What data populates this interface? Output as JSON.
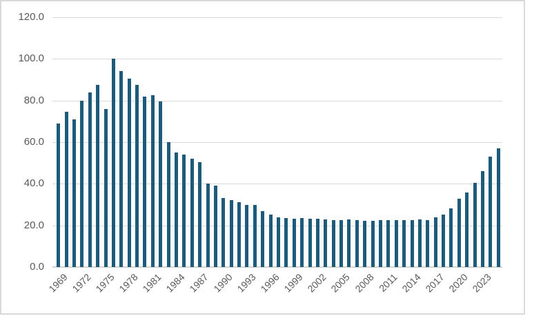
{
  "chart_data": {
    "type": "bar",
    "title": "",
    "xlabel": "",
    "ylabel": "",
    "legend": "none",
    "grid": true,
    "ylim": [
      0,
      120
    ],
    "x": [
      1969,
      1970,
      1971,
      1972,
      1973,
      1974,
      1975,
      1976,
      1977,
      1978,
      1979,
      1980,
      1981,
      1982,
      1983,
      1984,
      1985,
      1986,
      1987,
      1988,
      1989,
      1990,
      1991,
      1992,
      1993,
      1994,
      1995,
      1996,
      1997,
      1998,
      1999,
      2000,
      2001,
      2002,
      2003,
      2004,
      2005,
      2006,
      2007,
      2008,
      2009,
      2010,
      2011,
      2012,
      2013,
      2014,
      2015,
      2016,
      2017,
      2018,
      2019,
      2020,
      2021,
      2022,
      2023,
      2024,
      2025
    ],
    "values": [
      69.0,
      74.5,
      71.0,
      80.0,
      84.0,
      87.5,
      76.0,
      100.0,
      94.0,
      90.5,
      87.5,
      82.0,
      82.5,
      79.5,
      60.0,
      55.0,
      54.0,
      52.0,
      50.5,
      40.0,
      39.0,
      33.3,
      32.0,
      31.0,
      30.0,
      30.0,
      27.0,
      25.3,
      24.0,
      23.6,
      23.3,
      23.4,
      23.3,
      23.3,
      23.0,
      22.6,
      22.5,
      22.9,
      22.7,
      22.2,
      22.3,
      22.5,
      22.7,
      22.4,
      22.6,
      22.4,
      22.9,
      22.7,
      24.0,
      25.3,
      28.3,
      32.7,
      35.7,
      40.5,
      46.0,
      53.0,
      57.0
    ],
    "y_ticks": [
      0,
      20,
      40,
      60,
      80,
      100,
      120
    ],
    "y_tick_labels": [
      "0.0",
      "20.0",
      "40.0",
      "60.0",
      "80.0",
      "100.0",
      "120.0"
    ],
    "x_tick_labels": [
      "1969",
      "1972",
      "1975",
      "1978",
      "1981",
      "1984",
      "1987",
      "1990",
      "1993",
      "1996",
      "1999",
      "2002",
      "2005",
      "2008",
      "2011",
      "2014",
      "2017",
      "2020",
      "2023"
    ],
    "colors": {
      "bar": "#1E5B7A",
      "gridline": "#D9D9D9",
      "axis_line": "#D3D3D3",
      "tick_label": "#595959",
      "frame_border": "#D9D9D9",
      "background": "#FFFFFF"
    }
  }
}
